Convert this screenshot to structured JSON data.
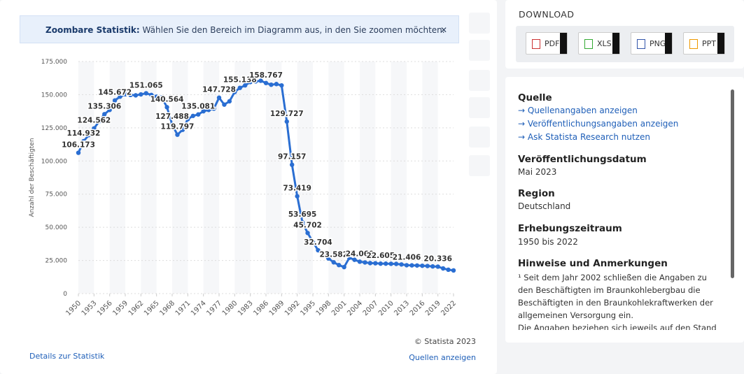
{
  "banner": {
    "bold": "Zoombare Statistik:",
    "text": "Wählen Sie den Bereich im Diagramm aus, in den Sie zoomen möchten."
  },
  "chart_data": {
    "type": "line",
    "y_label": "Anzahl der Beschäftigten",
    "color": "#2a6ed2",
    "grid": true,
    "x": [
      1950,
      1951,
      1952,
      1953,
      1954,
      1955,
      1956,
      1957,
      1958,
      1959,
      1960,
      1961,
      1962,
      1963,
      1964,
      1965,
      1966,
      1967,
      1968,
      1969,
      1970,
      1971,
      1972,
      1973,
      1974,
      1975,
      1976,
      1977,
      1978,
      1979,
      1980,
      1981,
      1982,
      1983,
      1984,
      1985,
      1986,
      1987,
      1988,
      1989,
      1990,
      1991,
      1992,
      1993,
      1994,
      1995,
      1996,
      1997,
      1998,
      1999,
      2000,
      2001,
      2002,
      2003,
      2004,
      2005,
      2006,
      2007,
      2008,
      2009,
      2010,
      2011,
      2012,
      2013,
      2014,
      2015,
      2016,
      2017,
      2018,
      2019,
      2020,
      2021,
      2022
    ],
    "values": [
      106173,
      114932,
      119500,
      124562,
      130000,
      135306,
      138500,
      145672,
      148500,
      150300,
      149800,
      149500,
      150200,
      151065,
      149800,
      148500,
      148000,
      140564,
      127488,
      119797,
      123500,
      131500,
      134000,
      135081,
      137500,
      138500,
      139500,
      147728,
      142500,
      145000,
      152000,
      155138,
      157000,
      159500,
      160000,
      160500,
      158767,
      157500,
      158000,
      157000,
      129727,
      97157,
      73419,
      53695,
      45702,
      39000,
      32704,
      29000,
      26500,
      23582,
      21500,
      20000,
      27000,
      25500,
      24069,
      23500,
      23000,
      22900,
      22605,
      22600,
      22500,
      22400,
      22000,
      21406,
      21300,
      21200,
      21000,
      20800,
      20500,
      20336,
      19000,
      18000,
      17500
    ],
    "value_labels": [
      "106.173",
      "114.932",
      null,
      "124.562",
      null,
      "135.306",
      null,
      "145.672",
      null,
      null,
      null,
      null,
      null,
      "151.065",
      null,
      null,
      null,
      "140.564",
      "127.488",
      "119.797",
      null,
      null,
      null,
      "135.081",
      null,
      null,
      null,
      "147.728",
      null,
      null,
      null,
      "155.138",
      null,
      null,
      null,
      null,
      "158.767",
      null,
      null,
      null,
      "129.727",
      "97.157",
      "73.419",
      "53.695",
      "45.702",
      null,
      "32.704",
      null,
      null,
      "23.582",
      null,
      null,
      null,
      null,
      "24.069",
      null,
      null,
      null,
      "22.605",
      null,
      null,
      null,
      null,
      "21.406",
      null,
      null,
      null,
      null,
      null,
      "20.336",
      null,
      null,
      null
    ],
    "xlim": [
      1950,
      2022
    ],
    "xticks": [
      1950,
      1953,
      1956,
      1959,
      1962,
      1965,
      1968,
      1971,
      1974,
      1977,
      1980,
      1983,
      1986,
      1989,
      1992,
      1995,
      1998,
      2001,
      2004,
      2007,
      2010,
      2013,
      2016,
      2019,
      2022
    ],
    "ylim": [
      0,
      175000
    ],
    "yticks": [
      0,
      {
        "value": 25000,
        "label": "25.000"
      },
      {
        "value": 50000,
        "label": "50.000"
      },
      {
        "value": 75000,
        "label": "75.000"
      },
      {
        "value": 100000,
        "label": "100.000"
      },
      {
        "value": 125000,
        "label": "125.000"
      },
      {
        "value": 150000,
        "label": "150.000"
      },
      {
        "value": 175000,
        "label": "175.000"
      }
    ]
  },
  "footer": {
    "copyright": "© Statista 2023",
    "details": "Details zur Statistik",
    "sources": "Quellen anzeigen"
  },
  "download": {
    "title": "DOWNLOAD",
    "buttons": [
      "PDF",
      "XLS",
      "PNG",
      "PPT"
    ]
  },
  "info": {
    "source_title": "Quelle",
    "links": [
      "Quellenangaben anzeigen",
      "Veröffentlichungsangaben anzeigen",
      "Ask Statista Research nutzen"
    ],
    "date_title": "Veröffentlichungsdatum",
    "date": "Mai 2023",
    "region_title": "Region",
    "region": "Deutschland",
    "period_title": "Erhebungszeitraum",
    "period": "1950 bis 2022",
    "notes_title": "Hinweise und Anmerkungen",
    "notes": [
      "¹ Seit dem Jahr 2002 schließen die Angaben zu den Beschäftigten im Braunkohlebergbau die Beschäftigten in den Braunkohlekraftwerken der allgemeinen Versorgung ein.",
      "Die Angaben beziehen sich jeweils auf den Stand"
    ]
  }
}
